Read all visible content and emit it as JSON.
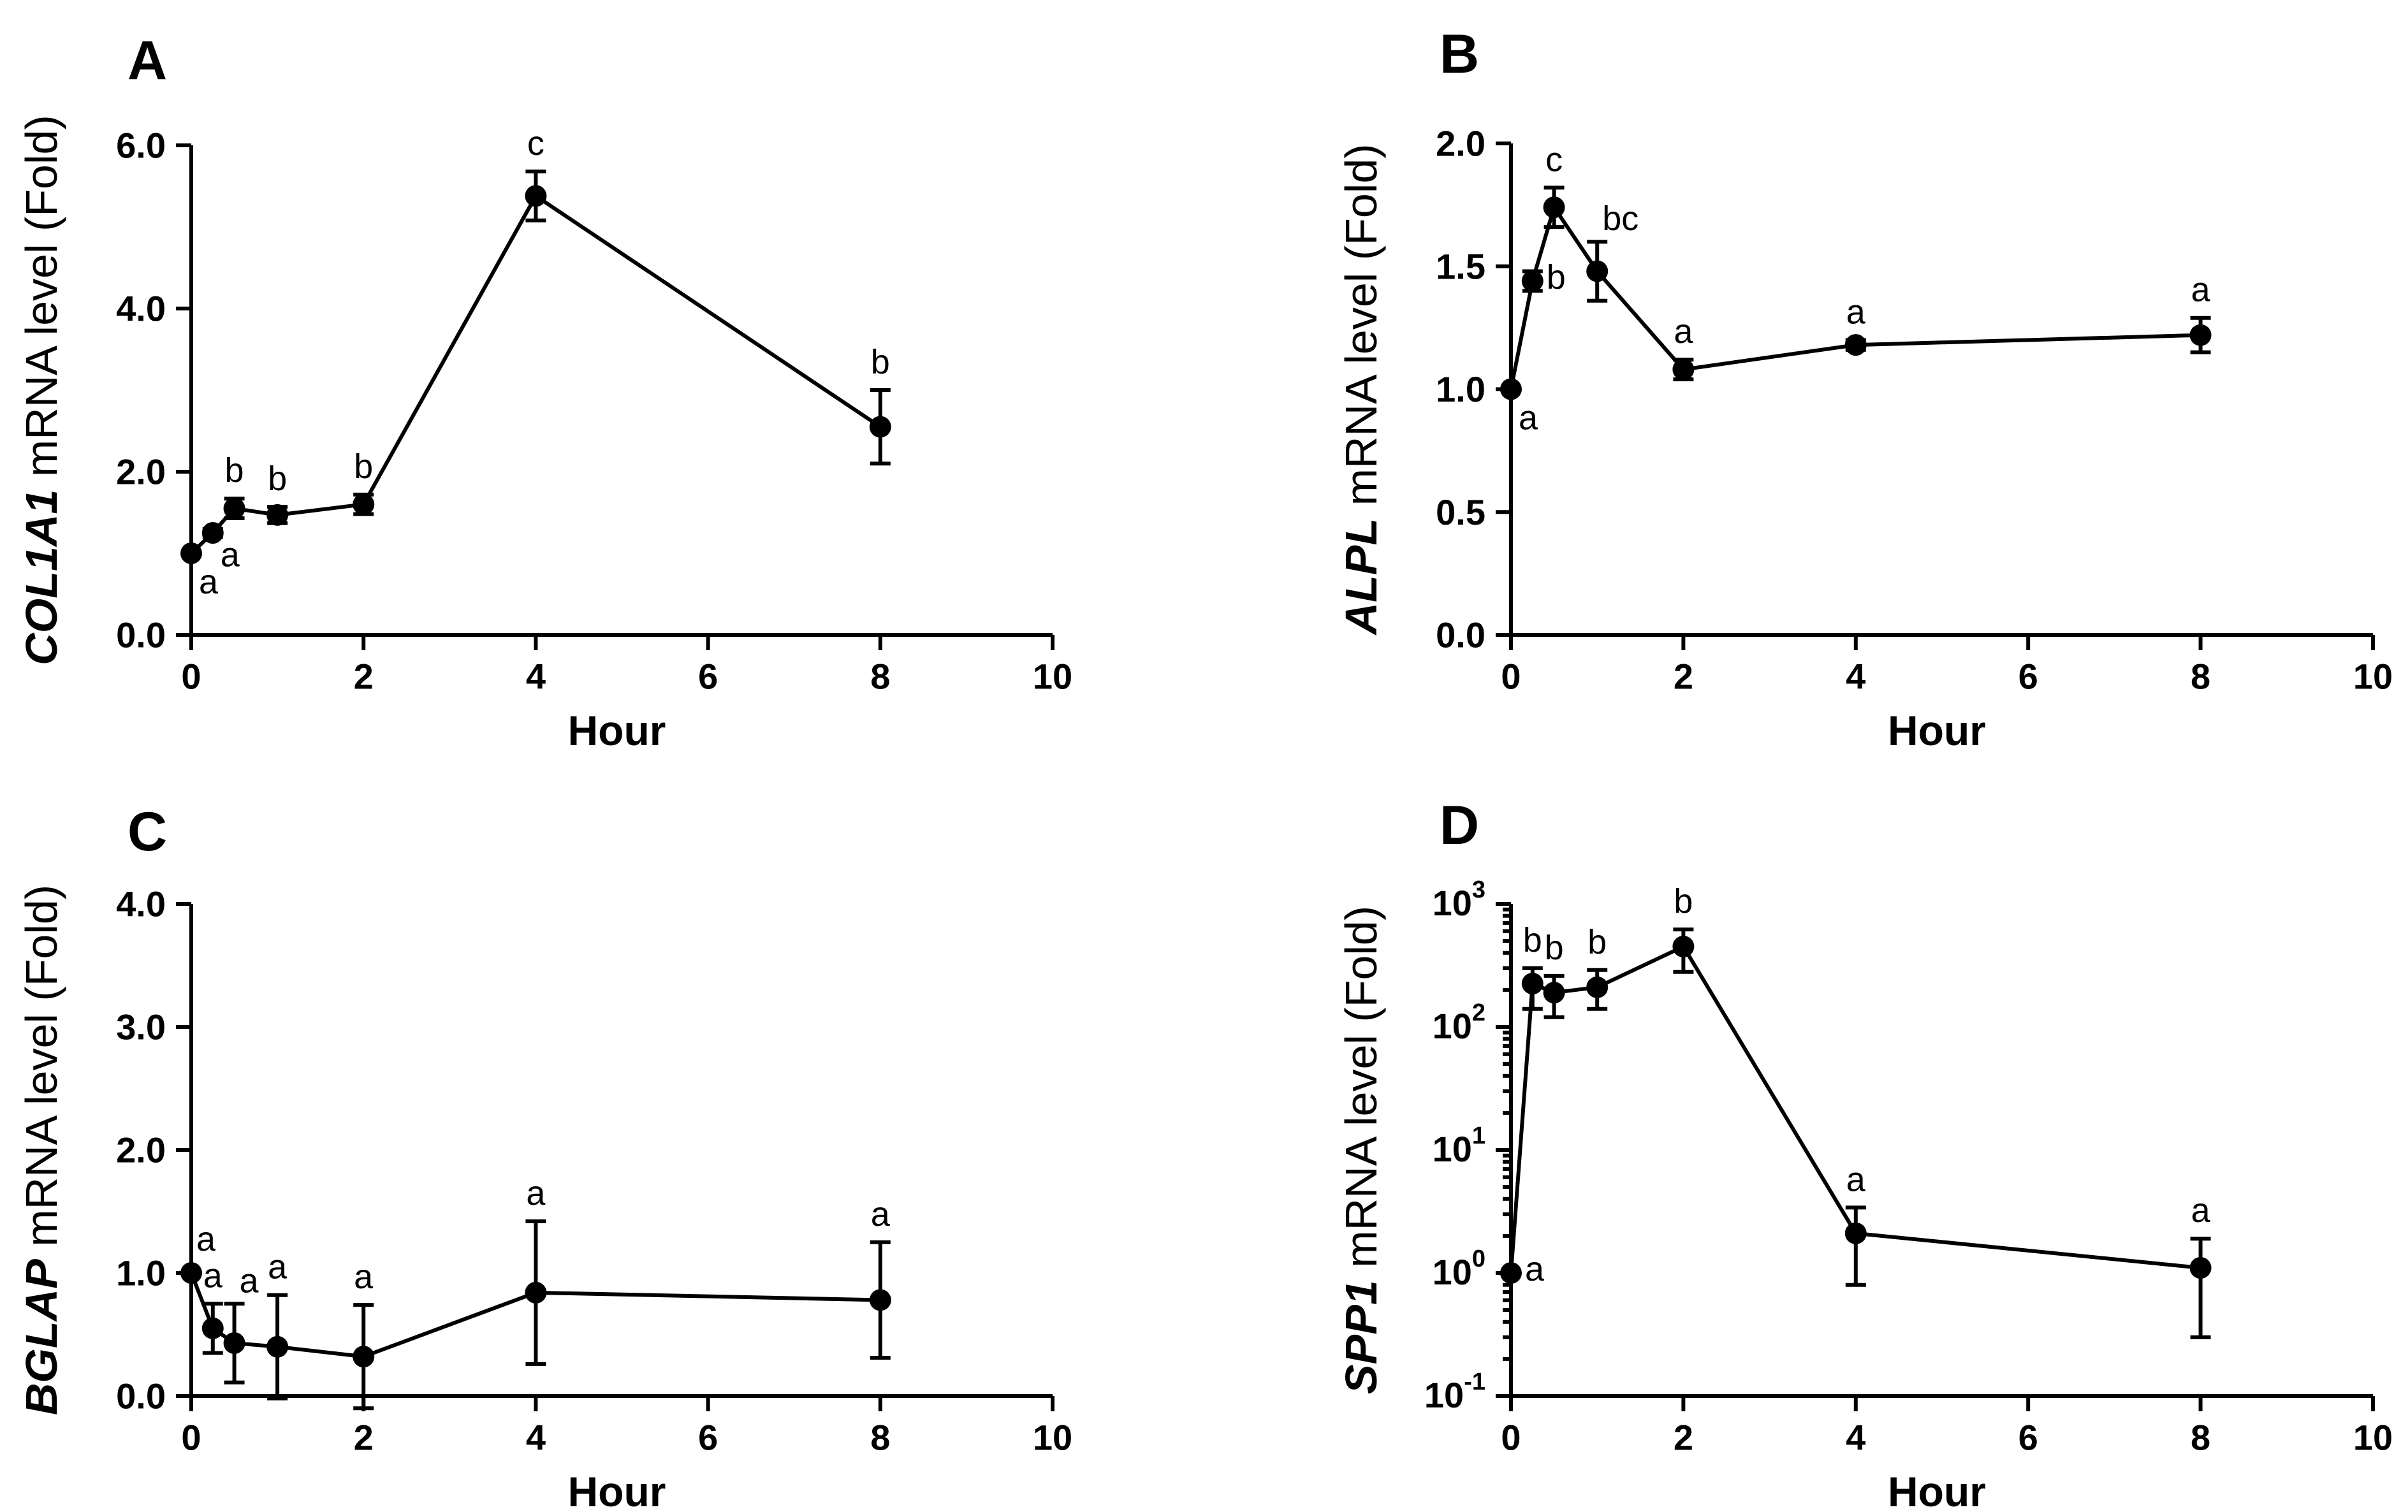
{
  "figure": {
    "background": "#ffffff",
    "ink": "#000000"
  },
  "chart_data": [
    {
      "panel": "A",
      "type": "line",
      "scale": "linear",
      "title": "",
      "ylabel_gene": "COL1A1",
      "ylabel_rest": " mRNA level (Fold)",
      "xlabel": "Hour",
      "xlim": [
        0,
        10
      ],
      "ylim": [
        0,
        6
      ],
      "xticks": [
        0,
        2,
        4,
        6,
        8,
        10
      ],
      "xtick_labels": [
        "0",
        "2",
        "4",
        "6",
        "8",
        "10"
      ],
      "yticks": [
        0,
        2,
        4,
        6
      ],
      "ytick_labels": [
        "0.0",
        "2.0",
        "4.0",
        "6.0"
      ],
      "x": [
        0,
        0.25,
        0.5,
        1,
        2,
        4,
        8
      ],
      "values": [
        1.0,
        1.25,
        1.55,
        1.47,
        1.6,
        5.38,
        2.55
      ],
      "errors": [
        0.0,
        0.05,
        0.12,
        0.1,
        0.12,
        0.3,
        0.45
      ],
      "letters": [
        "a",
        "a",
        "b",
        "b",
        "b",
        "c",
        "b"
      ],
      "letter_pos": [
        "below-right",
        "below-right",
        "above",
        "above",
        "above",
        "above",
        "above"
      ]
    },
    {
      "panel": "B",
      "type": "line",
      "scale": "linear",
      "title": "",
      "ylabel_gene": "ALPL",
      "ylabel_rest": " mRNA level (Fold)",
      "xlabel": "Hour",
      "xlim": [
        0,
        10
      ],
      "ylim": [
        0,
        2
      ],
      "xticks": [
        0,
        2,
        4,
        6,
        8,
        10
      ],
      "xtick_labels": [
        "0",
        "2",
        "4",
        "6",
        "8",
        "10"
      ],
      "yticks": [
        0,
        0.5,
        1,
        1.5,
        2
      ],
      "ytick_labels": [
        "0.0",
        "0.5",
        "1.0",
        "1.5",
        "2.0"
      ],
      "x": [
        0,
        0.25,
        0.5,
        1,
        2,
        4,
        8
      ],
      "values": [
        1.0,
        1.44,
        1.74,
        1.48,
        1.08,
        1.18,
        1.22
      ],
      "errors": [
        0.0,
        0.04,
        0.08,
        0.12,
        0.04,
        0.02,
        0.07
      ],
      "letters": [
        "a",
        "b",
        "c",
        "bc",
        "a",
        "a",
        "a"
      ],
      "letter_pos": [
        "below-right",
        "right",
        "above",
        "above-right",
        "above",
        "above",
        "above"
      ]
    },
    {
      "panel": "C",
      "type": "line",
      "scale": "linear",
      "title": "",
      "ylabel_gene": "BGLAP",
      "ylabel_rest": " mRNA level (Fold)",
      "xlabel": "Hour",
      "xlim": [
        0,
        10
      ],
      "ylim": [
        0,
        4
      ],
      "xticks": [
        0,
        2,
        4,
        6,
        8,
        10
      ],
      "xtick_labels": [
        "0",
        "2",
        "4",
        "6",
        "8",
        "10"
      ],
      "yticks": [
        0,
        1,
        2,
        3,
        4
      ],
      "ytick_labels": [
        "0.0",
        "1.0",
        "2.0",
        "3.0",
        "4.0"
      ],
      "x": [
        0,
        0.25,
        0.5,
        1,
        2,
        4,
        8
      ],
      "values": [
        1.0,
        0.55,
        0.43,
        0.4,
        0.32,
        0.84,
        0.78
      ],
      "errors": [
        0.0,
        0.2,
        0.32,
        0.42,
        0.42,
        0.58,
        0.47
      ],
      "letters": [
        "a",
        "a",
        "a",
        "a",
        "a",
        "a",
        "a"
      ],
      "letter_pos": [
        "above-right",
        "above",
        "above-right",
        "above",
        "above",
        "above",
        "above"
      ]
    },
    {
      "panel": "D",
      "type": "line",
      "scale": "log",
      "title": "",
      "ylabel_gene": "SPP1",
      "ylabel_rest": " mRNA level (Fold)",
      "xlabel": "Hour",
      "xlim": [
        0,
        10
      ],
      "ylim_exponent": [
        -1,
        3
      ],
      "xticks": [
        0,
        2,
        4,
        6,
        8,
        10
      ],
      "xtick_labels": [
        "0",
        "2",
        "4",
        "6",
        "8",
        "10"
      ],
      "ytick_exponents": [
        -1,
        0,
        1,
        2,
        3
      ],
      "ytick_base": "10",
      "ytick_powers": [
        "-1",
        "0",
        "1",
        "2",
        "3"
      ],
      "x": [
        0,
        0.25,
        0.5,
        1,
        2,
        4,
        8
      ],
      "values": [
        1.0,
        225,
        190,
        210,
        450,
        2.1,
        1.1
      ],
      "err_low": [
        1.0,
        140,
        120,
        140,
        280,
        0.8,
        0.3
      ],
      "err_high": [
        1.0,
        300,
        260,
        290,
        620,
        3.4,
        1.9
      ],
      "letters": [
        "a",
        "b",
        "b",
        "b",
        "b",
        "a",
        "a"
      ],
      "letter_pos": [
        "right",
        "above",
        "above",
        "above",
        "above",
        "above",
        "above"
      ]
    }
  ]
}
